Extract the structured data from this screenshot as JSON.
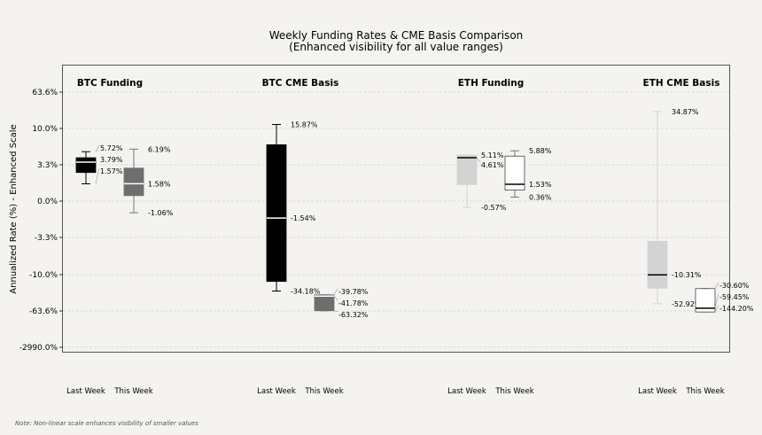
{
  "chart_data": {
    "type": "boxplot",
    "title": "Weekly Funding Rates & CME Basis Comparison",
    "subtitle": "(Enhanced visibility for all value ranges)",
    "ylabel": "Annualized Rate (%) - Enhanced Scale",
    "y_ticks": [
      "63.6%",
      "10.0%",
      "3.3%",
      "0.0%",
      "-3.3%",
      "-10.0%",
      "-63.6%",
      "-2990.0%"
    ],
    "y_tick_values": [
      63.6,
      10.0,
      3.3,
      0.0,
      -3.3,
      -10.0,
      -63.6,
      -2990.0
    ],
    "grid": true,
    "box_labels": [
      "Last Week",
      "This Week"
    ],
    "groups": [
      {
        "name": "BTC Funding",
        "boxes": [
          {
            "label": "Last Week",
            "color": "#000000",
            "median_color": "#ffffff",
            "whisker_color": "#000000",
            "max": 5.72,
            "q3": 4.6,
            "median": 3.79,
            "q1": 2.6,
            "min": 1.57,
            "annotations": [
              {
                "text": "5.72%",
                "value": 5.72
              },
              {
                "text": "3.79%",
                "value": 3.79
              },
              {
                "text": "1.57%",
                "value": 1.57
              }
            ]
          },
          {
            "label": "This Week",
            "color": "#6e6e6e",
            "median_color": "#ffffff",
            "whisker_color": "#777777",
            "max": 6.19,
            "q3": 3.0,
            "median": 1.58,
            "q1": 0.5,
            "min": -1.06,
            "annotations": [
              {
                "text": "6.19%",
                "value": 6.19
              },
              {
                "text": "1.58%",
                "value": 1.58
              },
              {
                "text": "-1.06%",
                "value": -1.06
              }
            ]
          }
        ]
      },
      {
        "name": "BTC CME Basis",
        "boxes": [
          {
            "label": "Last Week",
            "color": "#000000",
            "median_color": "#ffffff",
            "whisker_color": "#000000",
            "max": 15.87,
            "q3": 7.0,
            "median": -1.54,
            "q1": -20.0,
            "min": -34.18,
            "annotations": [
              {
                "text": "15.87%",
                "value": 15.87
              },
              {
                "text": "-1.54%",
                "value": -1.54
              },
              {
                "text": "-34.18%",
                "value": -34.18
              }
            ]
          },
          {
            "label": "This Week",
            "color": "#6e6e6e",
            "median_color": "#ffffff",
            "whisker_color": "#777777",
            "max": -39.78,
            "q3": -39.78,
            "median": -41.78,
            "q1": -63.32,
            "min": -63.32,
            "annotations": [
              {
                "text": "-39.78%",
                "value": -39.78
              },
              {
                "text": "-41.78%",
                "value": -41.78
              },
              {
                "text": "-63.32%",
                "value": -63.32
              }
            ]
          }
        ]
      },
      {
        "name": "ETH Funding",
        "boxes": [
          {
            "label": "Last Week",
            "color": "#d3d3d3",
            "median_color": "#000000",
            "whisker_color": "#d3d3d3",
            "max": 5.11,
            "q3": 5.11,
            "median": 4.61,
            "q1": 1.5,
            "min": -0.57,
            "annotations": [
              {
                "text": "5.11%",
                "value": 5.11
              },
              {
                "text": "4.61%",
                "value": 4.61
              },
              {
                "text": "-0.57%",
                "value": -0.57
              }
            ]
          },
          {
            "label": "This Week",
            "color": "#ffffff",
            "median_color": "#000000",
            "whisker_color": "#777777",
            "max": 5.88,
            "q3": 4.9,
            "median": 1.53,
            "q1": 1.0,
            "min": 0.36,
            "annotations": [
              {
                "text": "5.88%",
                "value": 5.88
              },
              {
                "text": "1.53%",
                "value": 1.53
              },
              {
                "text": "0.36%",
                "value": 0.36
              }
            ]
          }
        ]
      },
      {
        "name": "ETH CME Basis",
        "boxes": [
          {
            "label": "Last Week",
            "color": "#d3d3d3",
            "median_color": "#000000",
            "whisker_color": "#d3d3d3",
            "max": 34.87,
            "q3": -4.0,
            "median": -10.31,
            "q1": -30.0,
            "min": -52.92,
            "annotations": [
              {
                "text": "34.87%",
                "value": 34.87
              },
              {
                "text": "-10.31%",
                "value": -10.31
              },
              {
                "text": "-52.92%",
                "value": -52.92
              }
            ]
          },
          {
            "label": "This Week",
            "color": "#ffffff",
            "median_color": "#000000",
            "whisker_color": "#777777",
            "max": -30.6,
            "q3": -30.6,
            "median": -59.45,
            "q1": -144.2,
            "min": -144.2,
            "annotations": [
              {
                "text": "-30.60%",
                "value": -30.6
              },
              {
                "text": "-59.45%",
                "value": -59.45
              },
              {
                "text": "-144.20%",
                "value": -144.2
              }
            ]
          }
        ]
      }
    ]
  },
  "note": "Note: Non-linear scale enhances visibility of smaller values"
}
